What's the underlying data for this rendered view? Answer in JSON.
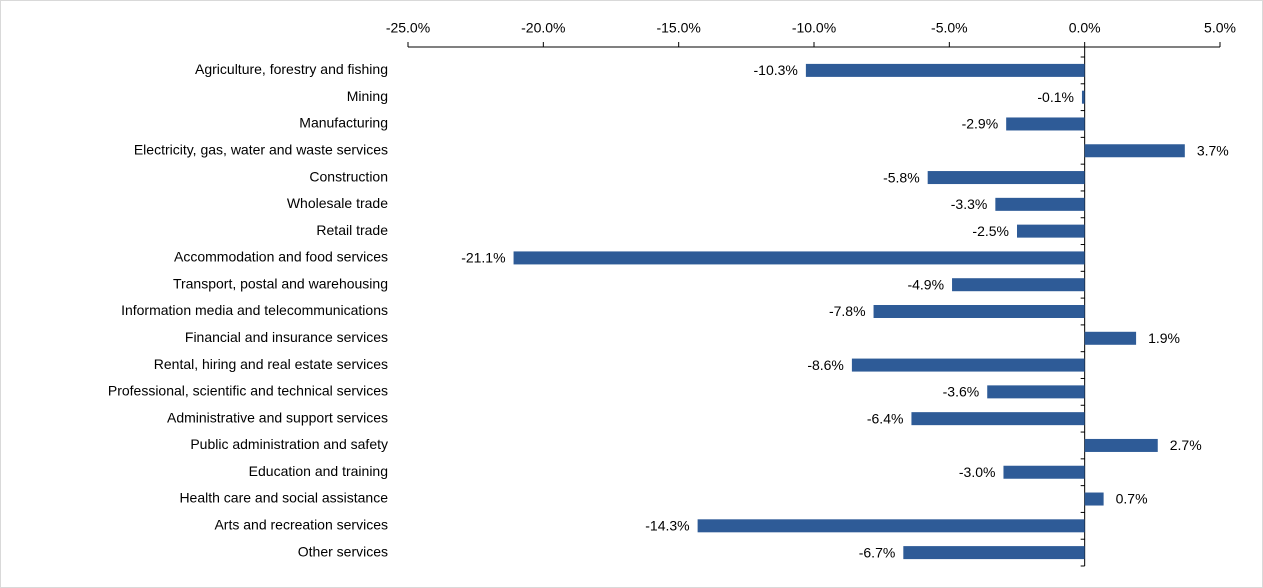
{
  "chart_data": {
    "type": "bar",
    "orientation": "horizontal",
    "categories": [
      "Agriculture, forestry and fishing",
      "Mining",
      "Manufacturing",
      "Electricity, gas, water and waste services",
      "Construction",
      "Wholesale trade",
      "Retail trade",
      "Accommodation and food services",
      "Transport, postal and warehousing",
      "Information media and telecommunications",
      "Financial and insurance services",
      "Rental, hiring and real estate services",
      "Professional, scientific and technical services",
      "Administrative and support services",
      "Public administration and safety",
      "Education and training",
      "Health care and social assistance",
      "Arts and recreation services",
      "Other services"
    ],
    "values": [
      -10.3,
      -0.1,
      -2.9,
      3.7,
      -5.8,
      -3.3,
      -2.5,
      -21.1,
      -4.9,
      -7.8,
      1.9,
      -8.6,
      -3.6,
      -6.4,
      2.7,
      -3.0,
      0.7,
      -14.3,
      -6.7
    ],
    "value_labels": [
      "-10.3%",
      "-0.1%",
      "-2.9%",
      "3.7%",
      "-5.8%",
      "-3.3%",
      "-2.5%",
      "-21.1%",
      "-4.9%",
      "-7.8%",
      "1.9%",
      "-8.6%",
      "-3.6%",
      "-6.4%",
      "2.7%",
      "-3.0%",
      "0.7%",
      "-14.3%",
      "-6.7%"
    ],
    "color": "#2e5b97",
    "xlim": [
      -25,
      5
    ],
    "xticks": [
      {
        "value": -25,
        "label": "-25.0%"
      },
      {
        "value": -20,
        "label": "-20.0%"
      },
      {
        "value": -15,
        "label": "-15.0%"
      },
      {
        "value": -10,
        "label": "-10.0%"
      },
      {
        "value": -5,
        "label": "-5.0%"
      },
      {
        "value": 0,
        "label": "0.0%"
      },
      {
        "value": 5,
        "label": "5.0%"
      }
    ]
  }
}
